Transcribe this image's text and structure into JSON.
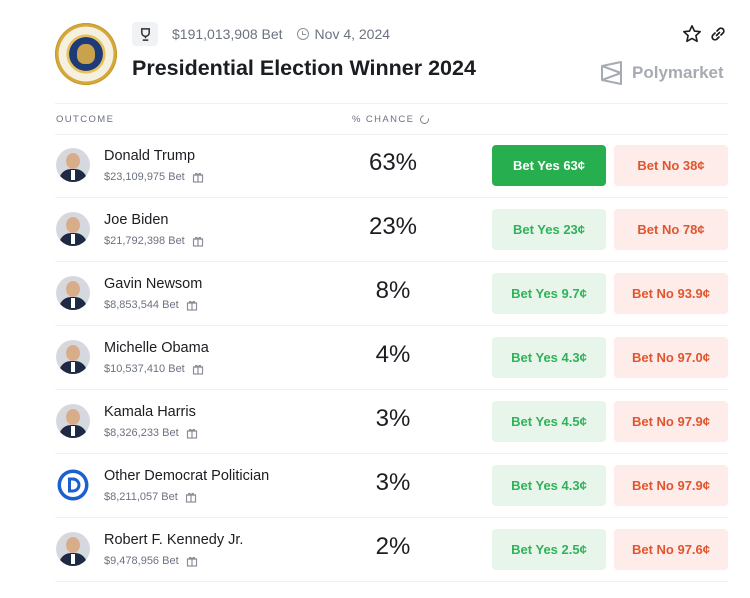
{
  "header": {
    "volume": "$191,013,908 Bet",
    "date": "Nov 4, 2024",
    "title": "Presidential Election Winner 2024",
    "brand": "Polymarket"
  },
  "table": {
    "col_outcome": "OUTCOME",
    "col_chance": "% CHANCE"
  },
  "rows": [
    {
      "name": "Donald Trump",
      "bet": "$23,109,975 Bet",
      "pct": "63%",
      "yes": "Bet Yes 63¢",
      "no": "Bet No 38¢",
      "avatar": "portrait"
    },
    {
      "name": "Joe Biden",
      "bet": "$21,792,398 Bet",
      "pct": "23%",
      "yes": "Bet Yes 23¢",
      "no": "Bet No 78¢",
      "avatar": "portrait"
    },
    {
      "name": "Gavin Newsom",
      "bet": "$8,853,544 Bet",
      "pct": "8%",
      "yes": "Bet Yes 9.7¢",
      "no": "Bet No 93.9¢",
      "avatar": "portrait"
    },
    {
      "name": "Michelle Obama",
      "bet": "$10,537,410 Bet",
      "pct": "4%",
      "yes": "Bet Yes 4.3¢",
      "no": "Bet No 97.0¢",
      "avatar": "portrait"
    },
    {
      "name": "Kamala Harris",
      "bet": "$8,326,233 Bet",
      "pct": "3%",
      "yes": "Bet Yes 4.5¢",
      "no": "Bet No 97.9¢",
      "avatar": "portrait"
    },
    {
      "name": "Other Democrat Politician",
      "bet": "$8,211,057 Bet",
      "pct": "3%",
      "yes": "Bet Yes 4.3¢",
      "no": "Bet No 97.9¢",
      "avatar": "democrat-logo"
    },
    {
      "name": "Robert F. Kennedy Jr.",
      "bet": "$9,478,956 Bet",
      "pct": "2%",
      "yes": "Bet Yes 2.5¢",
      "no": "Bet No 97.6¢",
      "avatar": "portrait"
    }
  ],
  "colors": {
    "yes_active": "#27ae4f",
    "yes_bg": "#e8f5ea",
    "yes_text": "#2fb35a",
    "no_bg": "#fdecea",
    "no_text": "#e2552c"
  },
  "icons": [
    "trophy-icon",
    "clock-icon",
    "star-icon",
    "link-icon",
    "refresh-icon",
    "gift-icon",
    "polymarket-logo-icon"
  ]
}
